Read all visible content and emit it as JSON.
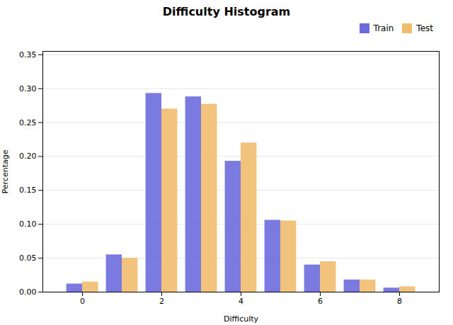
{
  "chart_data": {
    "type": "bar",
    "title": "Difficulty Histogram",
    "xlabel": "Difficulty",
    "ylabel": "Percentage",
    "x": [
      0,
      1,
      2,
      3,
      4,
      5,
      6,
      7,
      8
    ],
    "series": [
      {
        "name": "Train",
        "color": "#6b6bdd",
        "values": [
          0.012,
          0.055,
          0.293,
          0.288,
          0.193,
          0.106,
          0.04,
          0.018,
          0.006
        ]
      },
      {
        "name": "Test",
        "color": "#f0bc6e",
        "values": [
          0.015,
          0.05,
          0.27,
          0.277,
          0.22,
          0.105,
          0.045,
          0.018,
          0.008
        ]
      }
    ],
    "xlim": [
      -1,
      9
    ],
    "xticks": [
      0,
      2,
      4,
      6,
      8
    ],
    "ylim": [
      0,
      0.355
    ],
    "yticks": [
      {
        "value": 0.0,
        "label": "0.00"
      },
      {
        "value": 0.05,
        "label": "0.05"
      },
      {
        "value": 0.1,
        "label": "0.10"
      },
      {
        "value": 0.15,
        "label": "0.15"
      },
      {
        "value": 0.2,
        "label": "0.20"
      },
      {
        "value": 0.25,
        "label": "0.25"
      },
      {
        "value": 0.3,
        "label": "0.30"
      },
      {
        "value": 0.35,
        "label": "0.35"
      }
    ],
    "grid": true,
    "legend": "upper right"
  }
}
